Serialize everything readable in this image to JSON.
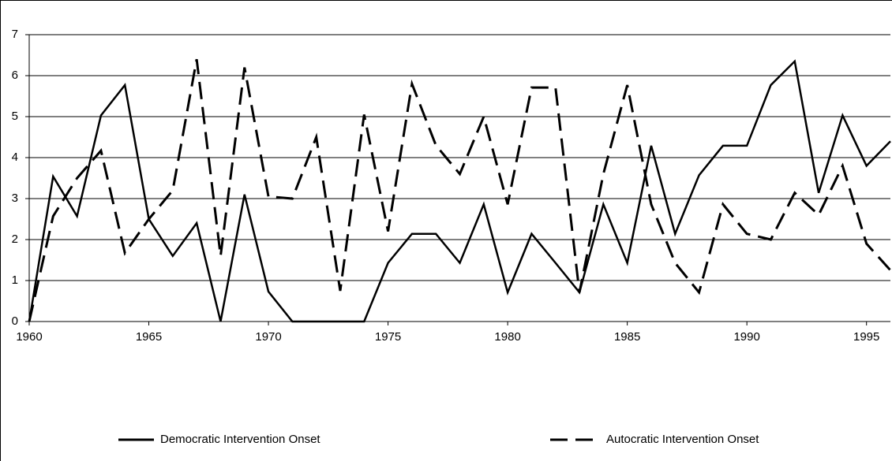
{
  "chart_data": {
    "type": "line",
    "x": [
      1960,
      1961,
      1962,
      1963,
      1964,
      1965,
      1966,
      1967,
      1968,
      1969,
      1970,
      1971,
      1972,
      1973,
      1974,
      1975,
      1976,
      1977,
      1978,
      1979,
      1980,
      1981,
      1982,
      1983,
      1984,
      1985,
      1986,
      1987,
      1988,
      1989,
      1990,
      1991,
      1992,
      1993,
      1994,
      1995,
      1996
    ],
    "series": [
      {
        "name": "Democratic Intervention Onset",
        "color": "#000000",
        "dash": "solid",
        "values": [
          0,
          3.54,
          2.57,
          5.03,
          5.77,
          2.5,
          1.6,
          2.4,
          0,
          3.1,
          0.73,
          0,
          0,
          0,
          0,
          1.43,
          2.14,
          2.14,
          1.43,
          2.86,
          0.71,
          2.14,
          1.43,
          0.71,
          2.86,
          1.43,
          4.29,
          2.14,
          3.57,
          4.29,
          4.29,
          5.77,
          6.35,
          3.14,
          5.03,
          3.8,
          4.4
        ]
      },
      {
        "name": "Autocratic Intervention Onset",
        "color": "#000000",
        "dash": "dashed",
        "values": [
          0,
          2.57,
          3.5,
          4.17,
          1.67,
          2.5,
          3.2,
          6.4,
          1.6,
          6.2,
          3.05,
          3.0,
          4.5,
          0.75,
          5.05,
          2.2,
          5.8,
          4.3,
          3.6,
          5.0,
          2.86,
          5.71,
          5.71,
          0.71,
          3.6,
          5.77,
          2.86,
          1.43,
          0.71,
          2.86,
          2.14,
          2.0,
          3.14,
          2.6,
          3.8,
          1.9,
          1.25
        ]
      }
    ],
    "xlim": [
      1960,
      1996
    ],
    "xticks": [
      1960,
      1965,
      1970,
      1975,
      1980,
      1985,
      1990,
      1995
    ],
    "ylim": [
      0,
      7
    ],
    "yticks": [
      0,
      1,
      2,
      3,
      4,
      5,
      6,
      7
    ],
    "grid": true,
    "legend": "bottom"
  }
}
